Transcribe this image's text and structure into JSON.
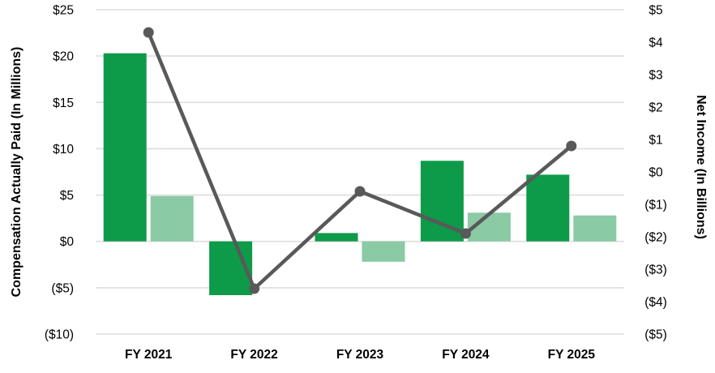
{
  "chart_data": {
    "type": "combo-bar-line",
    "categories": [
      "FY 2021",
      "FY 2022",
      "FY 2023",
      "FY 2024",
      "FY 2025"
    ],
    "series": [
      {
        "name": "bars-dark-green",
        "type": "bar",
        "axis": "left",
        "color": "#0d9b49",
        "values": [
          20.3,
          -5.8,
          0.9,
          8.7,
          7.2
        ]
      },
      {
        "name": "bars-light-green",
        "type": "bar",
        "axis": "left",
        "color": "#8acaa4",
        "values": [
          4.9,
          0,
          -2.2,
          3.1,
          2.8
        ]
      },
      {
        "name": "line-gray",
        "type": "line",
        "axis": "right",
        "color": "#595959",
        "values": [
          4.3,
          -3.6,
          -0.6,
          -1.9,
          0.8
        ]
      }
    ],
    "left_axis": {
      "title": "Compensation Actually Paid (In Millions)",
      "min": -10,
      "max": 25,
      "tick_values": [
        25,
        20,
        15,
        10,
        5,
        0,
        -5,
        -10
      ],
      "tick_labels": [
        "$25",
        "$20",
        "$15",
        "$10",
        "$5",
        "$0",
        "($5)",
        "($10)"
      ]
    },
    "right_axis": {
      "title": "Net Income (In Billions)",
      "min": -5,
      "max": 5,
      "tick_values": [
        5,
        4,
        3,
        2,
        1,
        0,
        -1,
        -2,
        -3,
        -4,
        -5
      ],
      "tick_labels": [
        "$5",
        "$4",
        "$3",
        "$2",
        "$1",
        "$0",
        "($1)",
        "($2)",
        "($3)",
        "($4)",
        "($5)"
      ]
    },
    "grid": {
      "on": true,
      "color": "#dedede",
      "based_on": "left_axis"
    },
    "legend": {
      "visible": false
    },
    "title": ""
  }
}
